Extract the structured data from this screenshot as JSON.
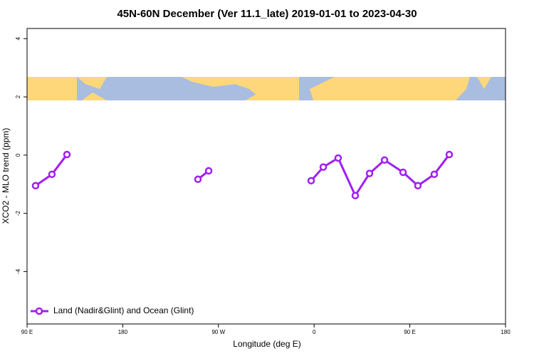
{
  "chart_data": {
    "type": "line",
    "title": "45N-60N December (Ver 11.1_late)   2019-01-01 to 2023-04-30",
    "x_label": "Longitude (deg E)",
    "y_label": "XCO2 - MLO trend (ppm)",
    "x": [
      98,
      113.4,
      127.5,
      null,
      250.7,
      260.8,
      null,
      357.2,
      368.6,
      382.6,
      398.7,
      412.1,
      426.2,
      443.6,
      457.6,
      473,
      487.1
    ],
    "series": [
      {
        "name": "Land (Nadir&Glint) and Ocean (Glint)",
        "color": "#a020f0",
        "values": [
          -1.05,
          -0.66,
          0.02,
          null,
          -0.83,
          -0.54,
          null,
          -0.88,
          -0.41,
          -0.1,
          -1.39,
          -0.63,
          -0.17,
          -0.59,
          -1.05,
          -0.66,
          0.02
        ]
      }
    ],
    "xlim": [
      90,
      540
    ],
    "xticks": [
      {
        "value": 90,
        "label": "90 E"
      },
      180,
      {
        "value": 270,
        "label": "90 W"
      },
      {
        "value": 360,
        "label": "0"
      },
      {
        "value": 450,
        "label": "90 E"
      },
      {
        "value": 540,
        "label": "180"
      }
    ],
    "ylim": [
      -5.8,
      4.35
    ],
    "yticks": [
      -4,
      -2,
      0,
      2,
      4
    ],
    "legend": "bottom-left"
  }
}
